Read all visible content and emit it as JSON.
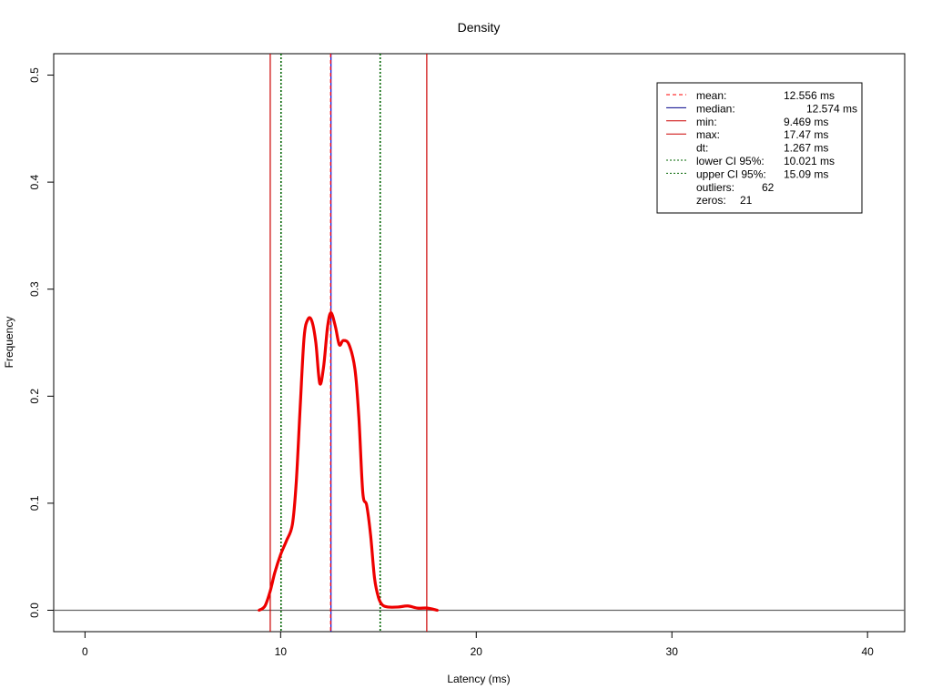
{
  "chart_data": {
    "type": "line",
    "title": "Density",
    "xlabel": "Latency (ms)",
    "ylabel": "Frequency",
    "xlim": [
      -1.6,
      41.9
    ],
    "ylim": [
      -0.02,
      0.52
    ],
    "x_ticks": [
      0,
      10,
      20,
      30,
      40
    ],
    "y_ticks": [
      0.0,
      0.1,
      0.2,
      0.3,
      0.4,
      0.5
    ],
    "x_tick_labels": [
      "0",
      "10",
      "20",
      "30",
      "40"
    ],
    "y_tick_labels": [
      "0.0",
      "0.1",
      "0.2",
      "0.3",
      "0.4",
      "0.5"
    ],
    "grid": false,
    "legend_position": "top-right",
    "series": [
      {
        "color": "#ee0000",
        "x": [
          8.9,
          9.2,
          9.469,
          9.7,
          10.0,
          10.3,
          10.6,
          10.8,
          11.0,
          11.2,
          11.4,
          11.6,
          11.8,
          12.0,
          12.2,
          12.4,
          12.574,
          12.8,
          13.0,
          13.2,
          13.5,
          13.8,
          14.0,
          14.2,
          14.4,
          14.6,
          14.8,
          15.0,
          15.2,
          15.5,
          16.0,
          16.5,
          17.0,
          17.5,
          18.0
        ],
        "y": [
          0.0,
          0.004,
          0.018,
          0.035,
          0.052,
          0.065,
          0.08,
          0.12,
          0.19,
          0.255,
          0.272,
          0.27,
          0.25,
          0.212,
          0.228,
          0.265,
          0.278,
          0.265,
          0.248,
          0.252,
          0.248,
          0.225,
          0.18,
          0.11,
          0.098,
          0.07,
          0.03,
          0.012,
          0.005,
          0.003,
          0.003,
          0.004,
          0.002,
          0.002,
          0.0
        ]
      }
    ],
    "reference_lines": [
      {
        "name": "min",
        "x": 9.469,
        "color": "#cc0000",
        "style": "solid"
      },
      {
        "name": "max",
        "x": 17.47,
        "color": "#cc0000",
        "style": "solid"
      },
      {
        "name": "lower CI 95%",
        "x": 10.021,
        "color": "#006400",
        "style": "dotted"
      },
      {
        "name": "upper CI 95%",
        "x": 15.09,
        "color": "#006400",
        "style": "dotted"
      },
      {
        "name": "median",
        "x": 12.574,
        "color": "#0000cc",
        "style": "solid"
      },
      {
        "name": "mean",
        "x": 12.556,
        "color": "#ff0000",
        "style": "dashed"
      }
    ],
    "baseline": {
      "y": 0.0,
      "color": "#666666"
    },
    "legend": [
      {
        "label": "mean:",
        "value": "12.556 ms",
        "line_color": "#ff0000",
        "line_style": "dashed"
      },
      {
        "label": "median:",
        "value": "12.574 ms",
        "line_color": "#000088",
        "line_style": "solid"
      },
      {
        "label": "min:",
        "value": "9.469 ms",
        "line_color": "#cc0000",
        "line_style": "solid"
      },
      {
        "label": "max:",
        "value": "17.47 ms",
        "line_color": "#cc0000",
        "line_style": "solid"
      },
      {
        "label": "dt:",
        "value": "1.267 ms",
        "line_color": "",
        "line_style": "none"
      },
      {
        "label": "lower CI 95%:",
        "value": "10.021 ms",
        "line_color": "#006400",
        "line_style": "dotted"
      },
      {
        "label": "upper CI 95%:",
        "value": "15.09 ms",
        "line_color": "#006400",
        "line_style": "dotted"
      },
      {
        "label": "outliers:",
        "value": "62",
        "line_color": "",
        "line_style": "none"
      },
      {
        "label": "zeros:",
        "value": "21",
        "line_color": "",
        "line_style": "none"
      }
    ]
  }
}
